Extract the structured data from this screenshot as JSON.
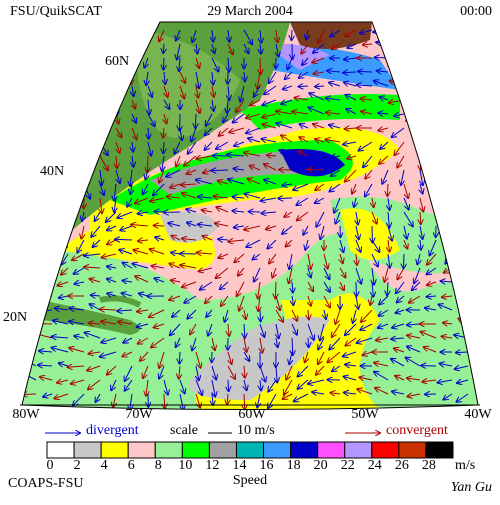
{
  "header": {
    "left": "FSU/QuikSCAT",
    "center": "29 March 2004",
    "right": "00:00"
  },
  "map": {
    "lat_labels": [
      "60N",
      "40N",
      "20N"
    ],
    "lon_labels": [
      "80W",
      "70W",
      "60W",
      "50W",
      "40W"
    ]
  },
  "legend": {
    "divergent": "divergent",
    "scale": "scale",
    "scale_value": "10 m/s",
    "convergent": "convergent"
  },
  "colorbar": {
    "labels": [
      "0",
      "2",
      "4",
      "6",
      "8",
      "10",
      "12",
      "14",
      "16",
      "18",
      "20",
      "22",
      "24",
      "26",
      "28"
    ],
    "colors": [
      "#ffffff",
      "#c8c8c8",
      "#ffff00",
      "#ffc8c8",
      "#96f096",
      "#00ff00",
      "#a0a0a0",
      "#00b4b4",
      "#3c9bff",
      "#0000c8",
      "#ff50ff",
      "#b496ff",
      "#ff0000",
      "#c83200",
      "#000000"
    ],
    "unit": "m/s",
    "title": "Speed"
  },
  "footer": {
    "left": "COAPS-FSU",
    "right": "Yan Gu"
  }
}
